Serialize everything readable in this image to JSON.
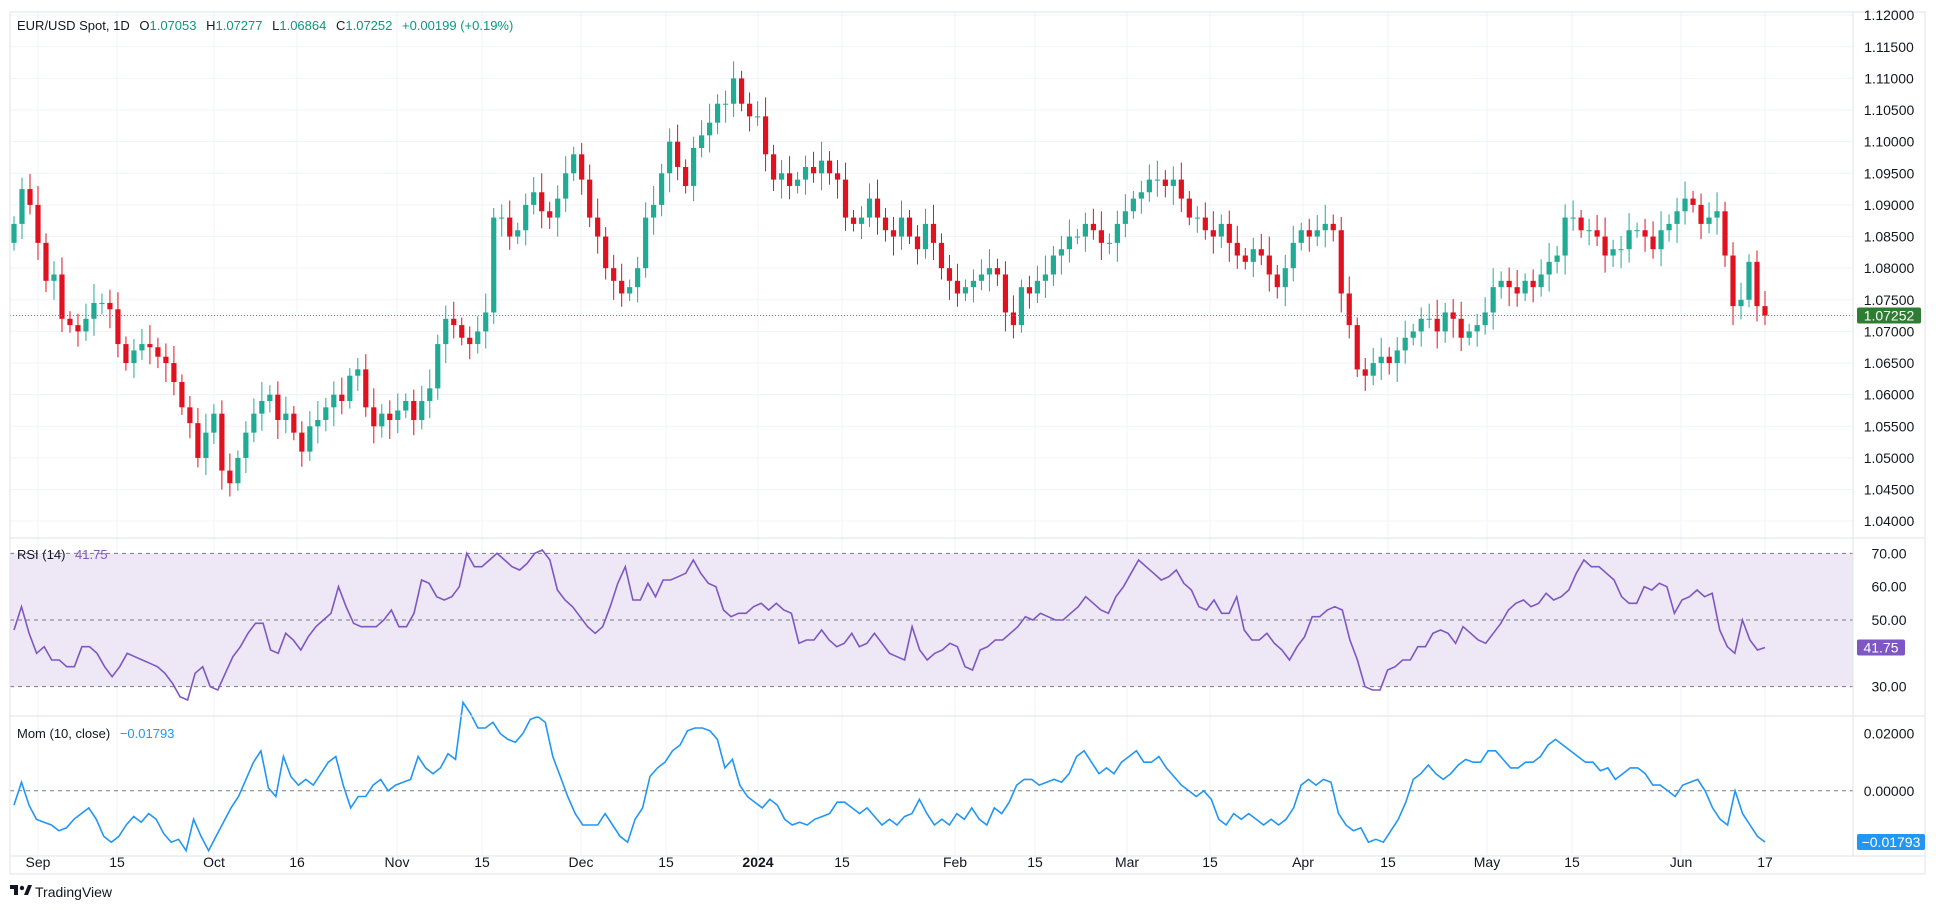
{
  "chart_data": {
    "type": "candlestick",
    "symbol": "EUR/USD Spot",
    "interval": "1D",
    "ohlc_header": {
      "o_label": "O",
      "o": "1.07053",
      "h_label": "H",
      "h": "1.07277",
      "l_label": "L",
      "l": "1.06864",
      "c_label": "C",
      "c": "1.07252",
      "change": "+0.00199 (+0.19%)"
    },
    "last_price_label": "1.07252",
    "last_price": 1.07252,
    "price_axis": {
      "range": [
        1.0375,
        1.1205
      ],
      "ticks": [
        "1.04000",
        "1.04500",
        "1.05000",
        "1.05500",
        "1.06000",
        "1.06500",
        "1.07000",
        "1.07500",
        "1.08000",
        "1.08500",
        "1.09000",
        "1.09500",
        "1.10000",
        "1.10500",
        "1.11000",
        "1.11500",
        "1.12000"
      ]
    },
    "x_axis": {
      "labels": [
        {
          "text": "Sep",
          "pos": 0.029,
          "bold": false
        },
        {
          "text": "15",
          "pos": 0.084,
          "bold": false
        },
        {
          "text": "Oct",
          "pos": 0.172,
          "bold": false
        },
        {
          "text": "16",
          "pos": 0.239,
          "bold": false
        },
        {
          "text": "Nov",
          "pos": 0.319,
          "bold": false
        },
        {
          "text": "15",
          "pos": 0.387,
          "bold": false
        },
        {
          "text": "Dec",
          "pos": 0.468,
          "bold": false
        },
        {
          "text": "15",
          "pos": 0.535,
          "bold": false
        },
        {
          "text": "2024",
          "pos": 0.61,
          "bold": true
        },
        {
          "text": "15",
          "pos": 0.678,
          "bold": false
        },
        {
          "text": "Feb",
          "pos": 0.768,
          "bold": false
        },
        {
          "text": "15",
          "pos": 0.836,
          "bold": false
        },
        {
          "text": "Mar",
          "pos": 0.912,
          "bold": false
        },
        {
          "text": "15",
          "pos": 0.979,
          "bold": false
        }
      ],
      "labels_tail": [
        {
          "text": "Apr",
          "pos": 0.0,
          "bold": false
        },
        {
          "text": "15",
          "pos": 0.0,
          "bold": false
        },
        {
          "text": "May",
          "pos": 0.0,
          "bold": false
        },
        {
          "text": "15",
          "pos": 0.0,
          "bold": false
        },
        {
          "text": "Jun",
          "pos": 0.0,
          "bold": false
        },
        {
          "text": "17",
          "pos": 0.0,
          "bold": false
        }
      ]
    },
    "candles_close_path": [
      1.087,
      1.0925,
      1.09,
      1.084,
      1.078,
      1.079,
      1.072,
      1.071,
      1.07,
      1.072,
      1.0745,
      1.0745,
      1.0735,
      1.068,
      1.065,
      1.067,
      1.068,
      1.0675,
      1.066,
      1.065,
      1.062,
      1.058,
      1.0555,
      1.05,
      1.054,
      1.057,
      1.048,
      1.046,
      1.05,
      1.054,
      1.057,
      1.059,
      1.06,
      1.056,
      1.057,
      1.054,
      1.051,
      1.055,
      1.056,
      1.058,
      1.06,
      1.059,
      1.063,
      1.064,
      1.058,
      1.055,
      1.057,
      1.056,
      1.0575,
      1.059,
      1.056,
      1.059,
      1.061,
      1.068,
      1.072,
      1.071,
      1.069,
      1.068,
      1.07,
      1.073,
      1.088,
      1.088,
      1.085,
      1.086,
      1.09,
      1.092,
      1.089,
      1.088,
      1.091,
      1.095,
      1.098,
      1.094,
      1.088,
      1.085,
      1.08,
      1.078,
      1.076,
      1.077,
      1.08,
      1.088,
      1.09,
      1.095,
      1.1,
      1.096,
      1.093,
      1.099,
      1.101,
      1.103,
      1.106,
      1.106,
      1.11,
      1.106,
      1.104,
      1.104,
      1.098,
      1.094,
      1.095,
      1.093,
      1.094,
      1.096,
      1.095,
      1.097,
      1.095,
      1.094,
      1.088,
      1.087,
      1.088,
      1.091,
      1.088,
      1.086,
      1.085,
      1.088,
      1.085,
      1.083,
      1.087,
      1.084,
      1.08,
      1.078,
      1.076,
      1.077,
      1.078,
      1.079,
      1.08,
      1.079,
      1.073,
      1.071,
      1.077,
      1.076,
      1.078,
      1.079,
      1.082,
      1.083,
      1.085,
      1.085,
      1.087,
      1.086,
      1.084,
      1.084,
      1.087,
      1.089,
      1.091,
      1.092,
      1.094,
      1.094,
      1.093,
      1.094,
      1.091,
      1.088,
      1.088,
      1.086,
      1.085,
      1.087,
      1.084,
      1.082,
      1.081,
      1.083,
      1.082,
      1.079,
      1.077,
      1.08,
      1.084,
      1.086,
      1.085,
      1.086,
      1.087,
      1.086,
      1.076,
      1.071,
      1.064,
      1.063,
      1.065,
      1.066,
      1.065,
      1.067,
      1.069,
      1.07,
      1.072,
      1.072,
      1.07,
      1.073,
      1.072,
      1.069,
      1.07,
      1.071,
      1.073,
      1.077,
      1.078,
      1.077,
      1.076,
      1.078,
      1.077,
      1.079,
      1.081,
      1.082,
      1.088,
      1.088,
      1.086,
      1.086,
      1.085,
      1.082,
      1.083,
      1.083,
      1.086,
      1.086,
      1.085,
      1.083,
      1.086,
      1.087,
      1.089,
      1.091,
      1.09,
      1.087,
      1.088,
      1.089,
      1.082,
      1.074,
      1.075,
      1.081,
      1.074,
      1.0725
    ],
    "rsi": {
      "label": "RSI (14)",
      "value_label": "41.75",
      "last": 41.75,
      "range": [
        21.5,
        74
      ],
      "levels": [
        70,
        50,
        30
      ],
      "ticks": [
        "70.00",
        "60.00",
        "50.00",
        "30.00"
      ],
      "values": [
        47,
        54,
        46,
        40,
        42,
        38,
        38,
        36,
        36,
        42,
        42,
        40,
        36,
        33,
        36,
        40,
        39,
        38,
        37,
        36,
        34,
        31,
        27,
        26,
        34,
        36,
        30,
        29,
        34,
        39,
        42,
        46,
        49,
        49,
        41,
        40,
        46,
        44,
        41,
        45,
        48,
        50,
        52,
        60,
        54,
        49,
        48,
        48,
        48,
        50,
        53,
        48,
        48,
        52,
        62,
        61,
        57,
        56,
        57,
        60,
        70,
        66,
        66,
        68,
        70,
        68,
        66,
        65,
        67,
        70,
        71,
        68,
        59,
        56,
        54,
        51,
        48,
        46,
        48,
        54,
        61,
        66,
        56,
        56,
        61,
        57,
        62,
        62,
        63,
        64,
        68,
        64,
        61,
        60,
        53,
        51,
        52,
        52,
        54,
        55,
        53,
        55,
        53,
        52,
        43,
        44,
        44,
        47,
        44,
        42,
        43,
        46,
        42,
        43,
        46,
        43,
        40,
        39,
        38,
        48,
        41,
        38,
        40,
        41,
        43,
        42,
        36,
        35,
        41,
        42,
        44,
        44,
        46,
        48,
        51,
        50,
        52,
        51,
        50,
        50,
        52,
        54,
        57,
        55,
        53,
        52,
        57,
        60,
        64,
        68,
        66,
        64,
        62,
        63,
        65,
        61,
        59,
        54,
        53,
        56,
        52,
        52,
        57,
        47,
        44,
        44,
        46,
        43,
        41,
        38,
        42,
        45,
        51,
        51,
        53,
        54,
        53,
        44,
        38,
        30,
        29,
        29,
        35,
        36,
        38,
        38,
        42,
        42,
        46,
        47,
        46,
        43,
        48,
        46,
        44,
        43,
        46,
        49,
        53,
        55,
        56,
        54,
        55,
        58,
        56,
        57,
        59,
        64,
        68,
        66,
        66,
        64,
        62,
        57,
        55,
        55,
        60,
        59,
        61,
        60,
        52,
        56,
        57,
        59,
        57,
        58,
        47,
        42,
        40,
        50,
        44,
        41,
        41.75
      ]
    },
    "momentum": {
      "label": "Mom (10, close)",
      "value_label": "−0.01793",
      "last": -0.01793,
      "range": [
        -0.0225,
        0.0255
      ],
      "zero_level": 0,
      "ticks": [
        "0.02000",
        "0.00000"
      ],
      "values": [
        -0.005,
        0.003,
        -0.005,
        -0.01,
        -0.011,
        -0.012,
        -0.014,
        -0.013,
        -0.01,
        -0.008,
        -0.006,
        -0.01,
        -0.016,
        -0.018,
        -0.016,
        -0.012,
        -0.009,
        -0.011,
        -0.008,
        -0.01,
        -0.015,
        -0.018,
        -0.017,
        -0.021,
        -0.01,
        -0.016,
        -0.021,
        -0.016,
        -0.011,
        -0.006,
        -0.002,
        0.004,
        0.01,
        0.014,
        0.001,
        -0.002,
        0.012,
        0.005,
        0.002,
        0.004,
        0.002,
        0.006,
        0.01,
        0.012,
        0.002,
        -0.006,
        -0.002,
        -0.002,
        0.002,
        0.004,
        0.0,
        0.002,
        0.003,
        0.004,
        0.012,
        0.008,
        0.006,
        0.008,
        0.013,
        0.011,
        0.031,
        0.027,
        0.022,
        0.022,
        0.024,
        0.02,
        0.018,
        0.017,
        0.02,
        0.025,
        0.026,
        0.024,
        0.012,
        0.005,
        -0.002,
        -0.008,
        -0.012,
        -0.012,
        -0.012,
        -0.008,
        -0.012,
        -0.016,
        -0.018,
        -0.01,
        -0.006,
        0.005,
        0.008,
        0.01,
        0.014,
        0.016,
        0.021,
        0.022,
        0.022,
        0.021,
        0.018,
        0.008,
        0.011,
        0.002,
        -0.002,
        -0.004,
        -0.006,
        -0.003,
        -0.005,
        -0.01,
        -0.012,
        -0.011,
        -0.012,
        -0.01,
        -0.009,
        -0.008,
        -0.004,
        -0.004,
        -0.006,
        -0.008,
        -0.006,
        -0.009,
        -0.012,
        -0.01,
        -0.012,
        -0.009,
        -0.008,
        -0.003,
        -0.008,
        -0.012,
        -0.01,
        -0.012,
        -0.008,
        -0.01,
        -0.006,
        -0.01,
        -0.012,
        -0.006,
        -0.008,
        -0.004,
        0.002,
        0.004,
        0.004,
        0.002,
        0.003,
        0.004,
        0.003,
        0.006,
        0.012,
        0.014,
        0.01,
        0.006,
        0.008,
        0.006,
        0.01,
        0.012,
        0.014,
        0.01,
        0.01,
        0.012,
        0.008,
        0.005,
        0.002,
        0.0,
        -0.002,
        0.0,
        -0.003,
        -0.01,
        -0.012,
        -0.008,
        -0.01,
        -0.008,
        -0.01,
        -0.012,
        -0.01,
        -0.012,
        -0.01,
        -0.006,
        0.002,
        0.004,
        0.002,
        0.004,
        0.003,
        -0.008,
        -0.012,
        -0.014,
        -0.013,
        -0.018,
        -0.017,
        -0.018,
        -0.014,
        -0.01,
        -0.004,
        0.004,
        0.006,
        0.009,
        0.006,
        0.004,
        0.006,
        0.009,
        0.011,
        0.01,
        0.01,
        0.014,
        0.014,
        0.011,
        0.008,
        0.008,
        0.01,
        0.01,
        0.012,
        0.016,
        0.018,
        0.016,
        0.014,
        0.012,
        0.01,
        0.01,
        0.007,
        0.008,
        0.004,
        0.006,
        0.008,
        0.008,
        0.006,
        0.002,
        0.002,
        0.0,
        -0.002,
        0.002,
        0.003,
        0.004,
        0.0,
        -0.006,
        -0.01,
        -0.012,
        0.0,
        -0.008,
        -0.012,
        -0.016,
        -0.01793
      ]
    }
  },
  "colors": {
    "up": "#089981",
    "down": "#f23645",
    "candle_up": "#22ab94",
    "candle_down": "#e0121f",
    "rsi_line": "#7e57c2",
    "rsi_fill": "#ede7f6",
    "mom_line": "#2196f3",
    "last_price_bg": "#2e7d32",
    "grid": "#f0f3fa",
    "text": "#131722"
  },
  "brand": {
    "name": "TradingView",
    "logo_icon": "tradingview-logo-icon"
  }
}
